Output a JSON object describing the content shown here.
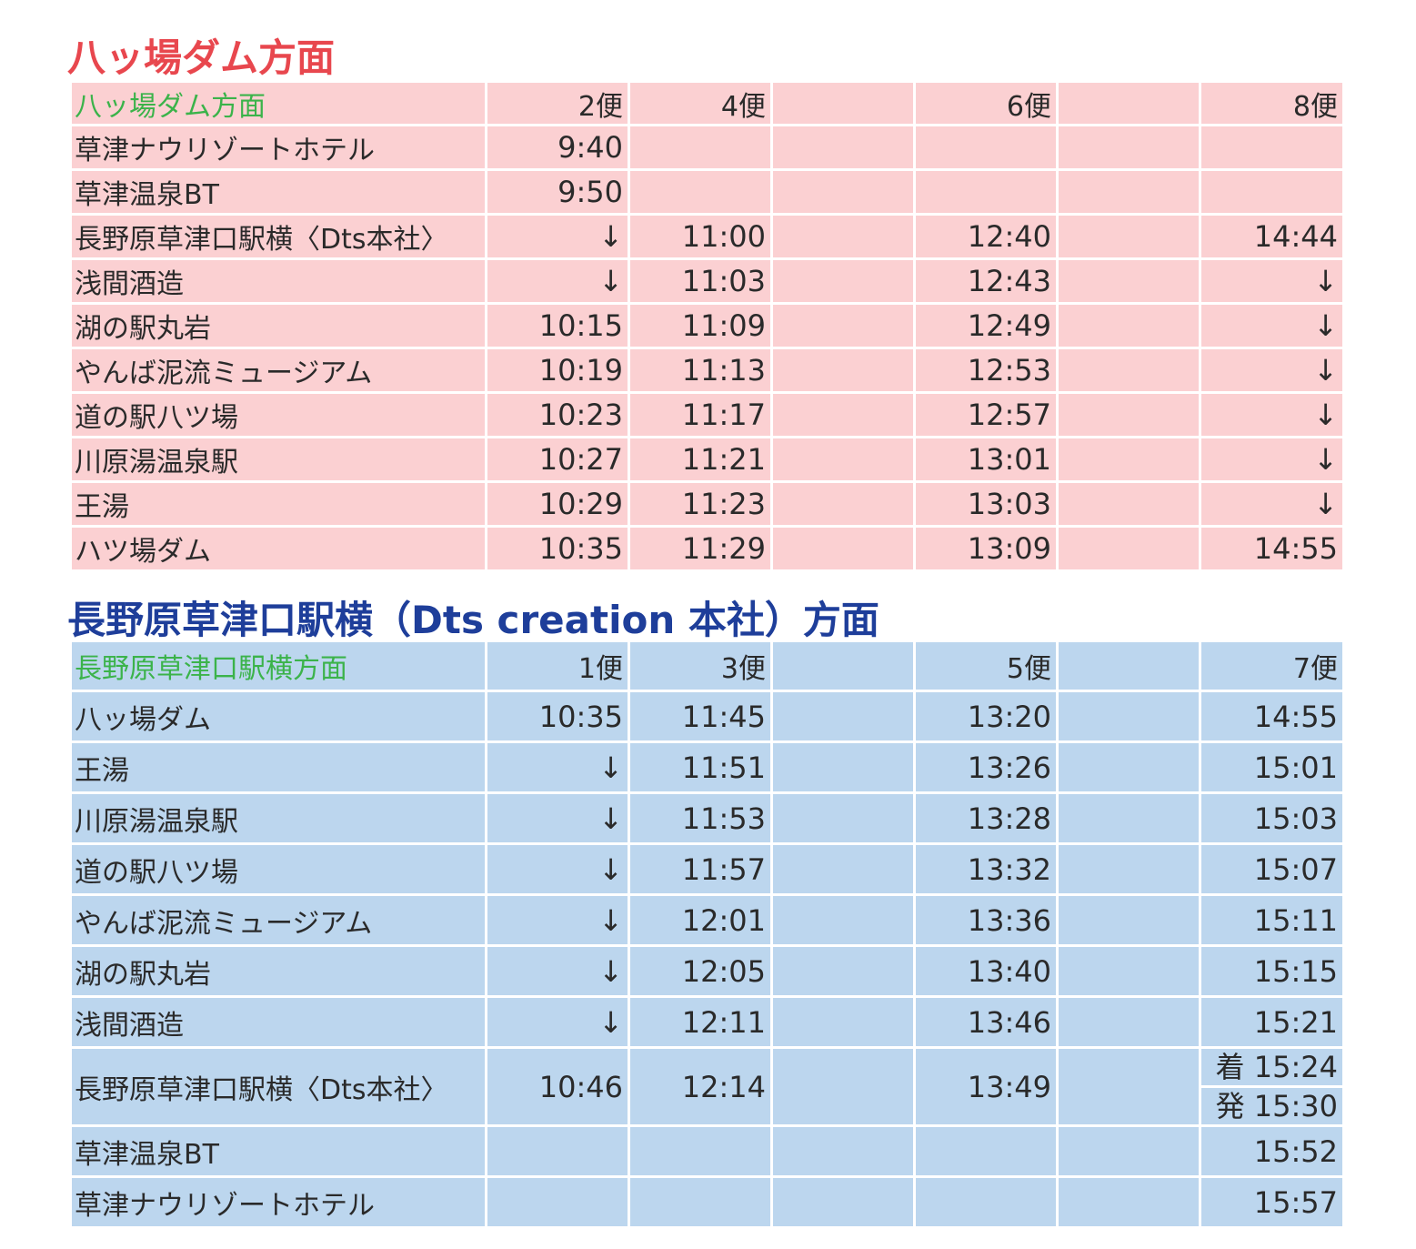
{
  "table1": {
    "title": "八ッ場ダム方面",
    "header": {
      "direction": "八ッ場ダム方面",
      "flights": [
        "2便",
        "4便",
        "",
        "6便",
        "",
        "8便"
      ]
    },
    "rows": [
      {
        "stop": "草津ナウリゾートホテル",
        "times": [
          "9:40",
          "",
          "",
          "",
          "",
          ""
        ]
      },
      {
        "stop": "草津温泉BT",
        "times": [
          "9:50",
          "",
          "",
          "",
          "",
          ""
        ]
      },
      {
        "stop": "長野原草津口駅横〈Dts本社〉",
        "times": [
          "↓",
          "11:00",
          "",
          "12:40",
          "",
          "14:44"
        ]
      },
      {
        "stop": "浅間酒造",
        "times": [
          "↓",
          "11:03",
          "",
          "12:43",
          "",
          "↓"
        ]
      },
      {
        "stop": "湖の駅丸岩",
        "times": [
          "10:15",
          "11:09",
          "",
          "12:49",
          "",
          "↓"
        ]
      },
      {
        "stop": "やんば泥流ミュージアム",
        "times": [
          "10:19",
          "11:13",
          "",
          "12:53",
          "",
          "↓"
        ]
      },
      {
        "stop": "道の駅八ツ場",
        "times": [
          "10:23",
          "11:17",
          "",
          "12:57",
          "",
          "↓"
        ]
      },
      {
        "stop": "川原湯温泉駅",
        "times": [
          "10:27",
          "11:21",
          "",
          "13:01",
          "",
          "↓"
        ]
      },
      {
        "stop": "王湯",
        "times": [
          "10:29",
          "11:23",
          "",
          "13:03",
          "",
          "↓"
        ]
      },
      {
        "stop": "ハツ場ダム",
        "times": [
          "10:35",
          "11:29",
          "",
          "13:09",
          "",
          "14:55"
        ]
      }
    ]
  },
  "table2": {
    "title": "長野原草津口駅横（Dts creation 本社）方面",
    "header": {
      "direction": "長野原草津口駅横方面",
      "flights": [
        "1便",
        "3便",
        "",
        "5便",
        "",
        "7便"
      ]
    },
    "rows": [
      {
        "stop": "八ッ場ダム",
        "times": [
          "10:35",
          "11:45",
          "",
          "13:20",
          "",
          "14:55"
        ]
      },
      {
        "stop": "王湯",
        "times": [
          "↓",
          "11:51",
          "",
          "13:26",
          "",
          "15:01"
        ]
      },
      {
        "stop": "川原湯温泉駅",
        "times": [
          "↓",
          "11:53",
          "",
          "13:28",
          "",
          "15:03"
        ]
      },
      {
        "stop": "道の駅八ツ場",
        "times": [
          "↓",
          "11:57",
          "",
          "13:32",
          "",
          "15:07"
        ]
      },
      {
        "stop": "やんば泥流ミュージアム",
        "times": [
          "↓",
          "12:01",
          "",
          "13:36",
          "",
          "15:11"
        ]
      },
      {
        "stop": "湖の駅丸岩",
        "times": [
          "↓",
          "12:05",
          "",
          "13:40",
          "",
          "15:15"
        ]
      },
      {
        "stop": "浅間酒造",
        "times": [
          "↓",
          "12:11",
          "",
          "13:46",
          "",
          "15:21"
        ]
      },
      {
        "stop": "長野原草津口駅横〈Dts本社〉",
        "times": [
          "10:46",
          "12:14",
          "",
          "13:49",
          "",
          ""
        ],
        "split": {
          "arrive": "着 15:24",
          "depart": "発 15:30"
        }
      },
      {
        "stop": "草津温泉BT",
        "times": [
          "",
          "",
          "",
          "",
          "",
          "15:52"
        ]
      },
      {
        "stop": "草津ナウリゾートホテル",
        "times": [
          "",
          "",
          "",
          "",
          "",
          "15:57"
        ]
      }
    ]
  },
  "colors": {
    "title1": "#e8474e",
    "title2": "#1e3e9a",
    "table1_bg": "#fbd0d2",
    "table2_bg": "#bcd6ee",
    "header_direction": "#3bb34a"
  }
}
